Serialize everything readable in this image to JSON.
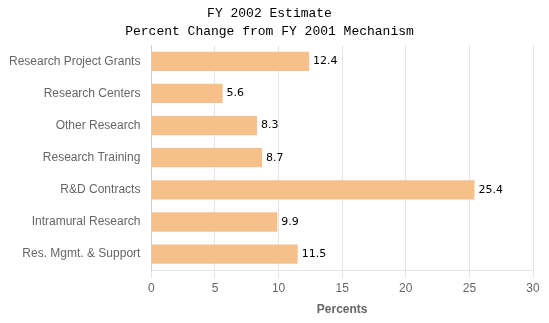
{
  "chart_data": {
    "type": "bar",
    "orientation": "horizontal",
    "title": "FY 2002 Estimate",
    "subtitle": "Percent Change from FY 2001 Mechanism",
    "categories": [
      "Res. Mgmt. & Support",
      "Intramural Research",
      "R&D Contracts",
      "Research Training",
      "Other Research",
      "Research Centers",
      "Research Project Grants"
    ],
    "values": [
      11.5,
      9.9,
      25.4,
      8.7,
      8.3,
      5.6,
      12.4
    ],
    "color": "#F5C08A",
    "xlabel": "Percents",
    "xlim": [
      0,
      30
    ],
    "xticks": [
      0,
      5,
      10,
      15,
      20,
      25,
      30
    ],
    "grid": true,
    "data_labels": true
  }
}
